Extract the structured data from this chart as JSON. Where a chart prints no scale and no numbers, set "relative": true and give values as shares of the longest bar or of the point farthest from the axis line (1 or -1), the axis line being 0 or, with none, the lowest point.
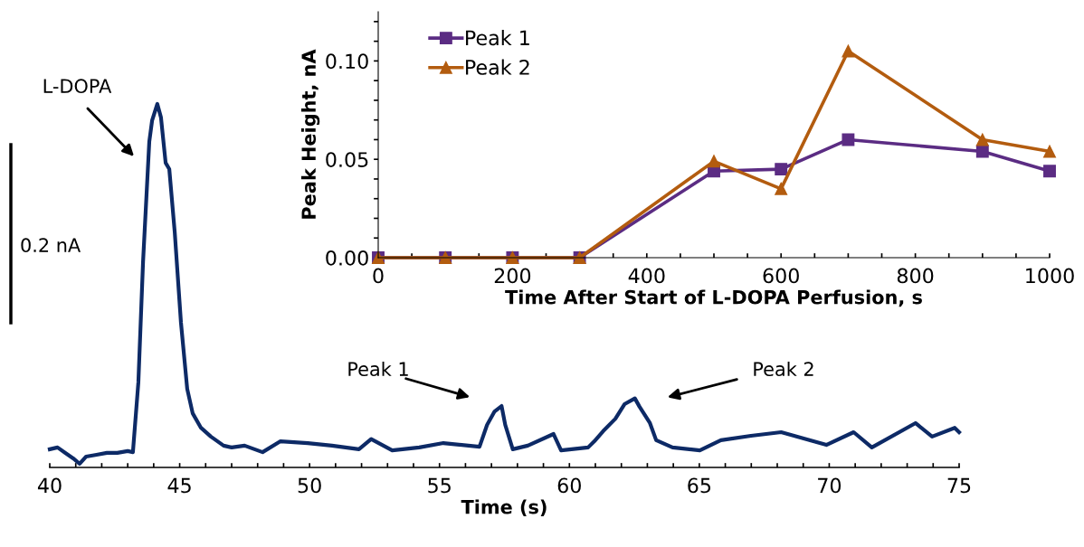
{
  "chart_data": [
    {
      "type": "line",
      "xlabel": "Time (s)",
      "relative": true,
      "tick_labels": "x",
      "grid": false,
      "legend": false,
      "marker": "none",
      "line_style": "solid",
      "xlim": [
        40,
        75
      ],
      "xticks": [
        40,
        {
          "value": 41,
          "label": null
        },
        {
          "value": 42,
          "label": null
        },
        {
          "value": 43,
          "label": null
        },
        {
          "value": 44,
          "label": null
        },
        45,
        {
          "value": 46,
          "label": null
        },
        {
          "value": 47,
          "label": null
        },
        {
          "value": 48,
          "label": null
        },
        {
          "value": 49,
          "label": null
        },
        50,
        {
          "value": 51,
          "label": null
        },
        {
          "value": 52,
          "label": null
        },
        {
          "value": 53,
          "label": null
        },
        {
          "value": 54,
          "label": null
        },
        55,
        {
          "value": 56,
          "label": null
        },
        {
          "value": 57,
          "label": null
        },
        {
          "value": 58,
          "label": null
        },
        {
          "value": 59,
          "label": null
        },
        60,
        {
          "value": 61,
          "label": null
        },
        {
          "value": 62,
          "label": null
        },
        {
          "value": 63,
          "label": null
        },
        {
          "value": 64,
          "label": null
        },
        65,
        {
          "value": 66,
          "label": null
        },
        {
          "value": 67,
          "label": null
        },
        {
          "value": 68,
          "label": null
        },
        {
          "value": 69,
          "label": null
        },
        70,
        {
          "value": 71,
          "label": null
        },
        {
          "value": 72,
          "label": null
        },
        {
          "value": 73,
          "label": null
        },
        {
          "value": 74,
          "label": null
        },
        75
      ],
      "series": [
        {
          "color": "#0d2a66",
          "x": [
            40.0,
            40.3,
            40.6,
            40.9,
            41.15,
            41.4,
            41.8,
            42.2,
            42.6,
            43.0,
            43.2,
            43.41,
            43.59,
            43.83,
            43.94,
            44.14,
            44.28,
            44.46,
            44.6,
            44.81,
            45.05,
            45.29,
            45.5,
            45.82,
            46.2,
            46.69,
            47.0,
            47.5,
            48.19,
            48.88,
            49.93,
            50.86,
            51.9,
            52.37,
            53.18,
            54.22,
            55.15,
            56.54,
            56.83,
            57.12,
            57.39,
            57.53,
            57.82,
            58.4,
            59.39,
            59.68,
            60.72,
            60.96,
            61.3,
            61.77,
            62.12,
            62.52,
            62.7,
            63.1,
            63.34,
            63.97,
            65.02,
            65.83,
            66.99,
            68.15,
            69.89,
            70.94,
            71.64,
            73.32,
            73.96,
            74.83,
            75.0
          ],
          "values": [
            0.05,
            0.055,
            0.04,
            0.025,
            0.01,
            0.03,
            0.035,
            0.04,
            0.04,
            0.045,
            0.042,
            0.234,
            0.565,
            0.896,
            0.955,
            1.0,
            0.963,
            0.838,
            0.821,
            0.647,
            0.398,
            0.216,
            0.149,
            0.109,
            0.085,
            0.06,
            0.055,
            0.06,
            0.042,
            0.072,
            0.067,
            0.06,
            0.05,
            0.078,
            0.047,
            0.055,
            0.067,
            0.057,
            0.117,
            0.154,
            0.169,
            0.117,
            0.05,
            0.06,
            0.092,
            0.047,
            0.055,
            0.072,
            0.1,
            0.134,
            0.174,
            0.19,
            0.167,
            0.122,
            0.075,
            0.055,
            0.047,
            0.075,
            0.087,
            0.097,
            0.062,
            0.097,
            0.055,
            0.122,
            0.085,
            0.109,
            0.097
          ]
        }
      ],
      "annotations": [
        "L-DOPA",
        "Peak 1",
        "Peak 2",
        "0.2 nA"
      ]
    },
    {
      "type": "line",
      "xlabel": "Time After Start of L-DOPA Perfusion, s",
      "ylabel": "Peak Height, nA",
      "grid": false,
      "legend": "top left",
      "line_style": "solid",
      "xlim": [
        0,
        1000
      ],
      "ylim": [
        0,
        0.125
      ],
      "xticks": [
        0,
        {
          "value": 50,
          "label": null
        },
        {
          "value": 100,
          "label": null
        },
        {
          "value": 150,
          "label": null
        },
        200,
        {
          "value": 250,
          "label": null
        },
        {
          "value": 300,
          "label": null
        },
        {
          "value": 350,
          "label": null
        },
        400,
        {
          "value": 450,
          "label": null
        },
        {
          "value": 500,
          "label": null
        },
        {
          "value": 550,
          "label": null
        },
        600,
        {
          "value": 650,
          "label": null
        },
        {
          "value": 700,
          "label": null
        },
        {
          "value": 750,
          "label": null
        },
        800,
        {
          "value": 850,
          "label": null
        },
        {
          "value": 900,
          "label": null
        },
        {
          "value": 950,
          "label": null
        },
        1000
      ],
      "yticks": [
        {
          "value": 0,
          "label": "0.00"
        },
        {
          "value": 0.01,
          "label": null
        },
        {
          "value": 0.02,
          "label": null
        },
        {
          "value": 0.03,
          "label": null
        },
        {
          "value": 0.04,
          "label": null
        },
        {
          "value": 0.05,
          "label": "0.05"
        },
        {
          "value": 0.06,
          "label": null
        },
        {
          "value": 0.07,
          "label": null
        },
        {
          "value": 0.08,
          "label": null
        },
        {
          "value": 0.09,
          "label": null
        },
        {
          "value": 0.1,
          "label": "0.10"
        },
        {
          "value": 0.11,
          "label": null
        },
        {
          "value": 0.12,
          "label": null
        }
      ],
      "x": [
        0,
        100,
        200,
        300,
        500,
        600,
        700,
        900,
        1000
      ],
      "series": [
        {
          "name": "Peak 1",
          "color": "#5b2c83",
          "marker": "square",
          "values": [
            0,
            0,
            0,
            0,
            0.044,
            0.045,
            0.06,
            0.054,
            0.044
          ]
        },
        {
          "name": "Peak 2",
          "color": "#b35c0f",
          "marker": "triangle",
          "values": [
            0,
            0,
            0,
            0,
            0.049,
            0.035,
            0.105,
            0.06,
            0.054
          ]
        }
      ]
    }
  ]
}
